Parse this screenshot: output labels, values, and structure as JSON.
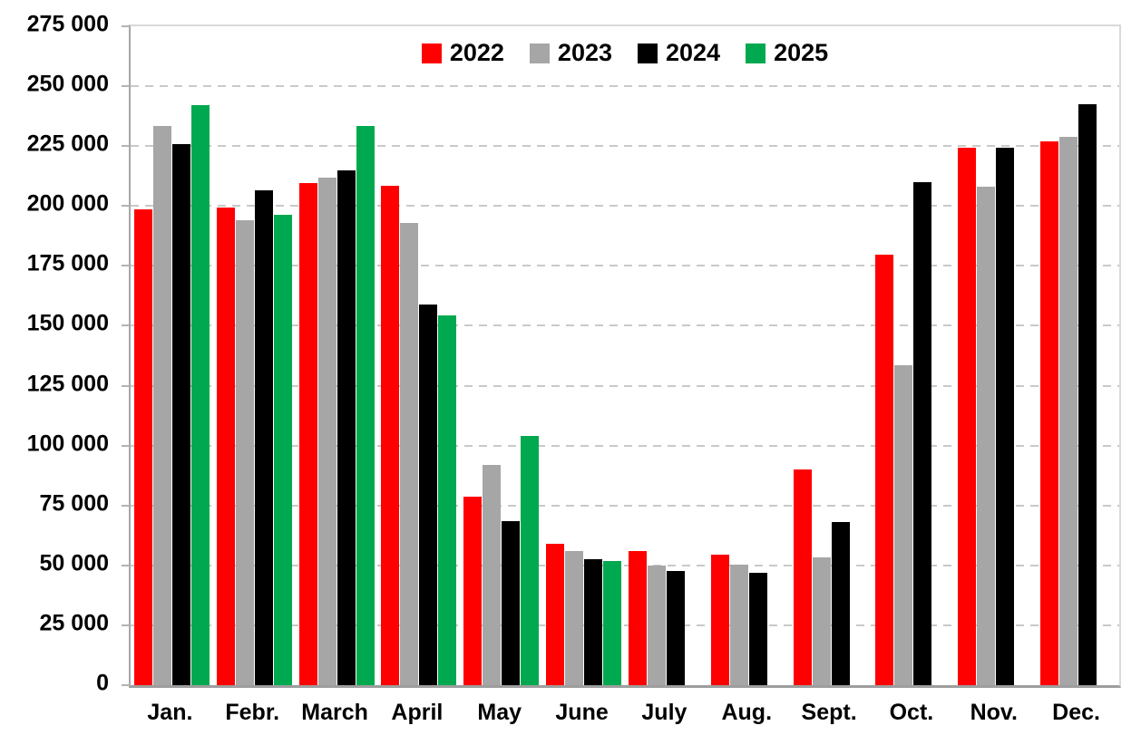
{
  "chart_data": {
    "type": "bar",
    "title": "",
    "xlabel": "",
    "ylabel": "",
    "categories": [
      "Jan.",
      "Febr.",
      "March",
      "April",
      "May",
      "June",
      "July",
      "Aug.",
      "Sept.",
      "Oct.",
      "Nov.",
      "Dec."
    ],
    "series": [
      {
        "name": "2022",
        "color": "#FF0000",
        "values": [
          198500,
          199500,
          209500,
          208500,
          78500,
          59000,
          56000,
          54500,
          90000,
          179500,
          224500,
          227000
        ]
      },
      {
        "name": "2023",
        "color": "#A6A6A6",
        "values": [
          233500,
          194000,
          212000,
          193000,
          92000,
          56000,
          50000,
          50500,
          53500,
          133500,
          208000,
          229000
        ]
      },
      {
        "name": "2024",
        "color": "#000000",
        "values": [
          226000,
          206500,
          215000,
          159000,
          68500,
          52500,
          47500,
          47000,
          68000,
          210000,
          224500,
          242500
        ]
      },
      {
        "name": "2025",
        "color": "#00A94F",
        "values": [
          242000,
          196500,
          233500,
          154500,
          104000,
          52000,
          null,
          null,
          null,
          null,
          null,
          null
        ]
      }
    ],
    "ylim": [
      0,
      275000
    ],
    "ytick_step": 25000,
    "ytick_labels": [
      "0",
      "25 000",
      "50 000",
      "75 000",
      "100 000",
      "125 000",
      "150 000",
      "175 000",
      "200 000",
      "225 000",
      "250 000",
      "275 000"
    ],
    "grid": "horizontal-dashed",
    "gridline_color": "#C9C9C9",
    "legend_position": "top-center"
  }
}
